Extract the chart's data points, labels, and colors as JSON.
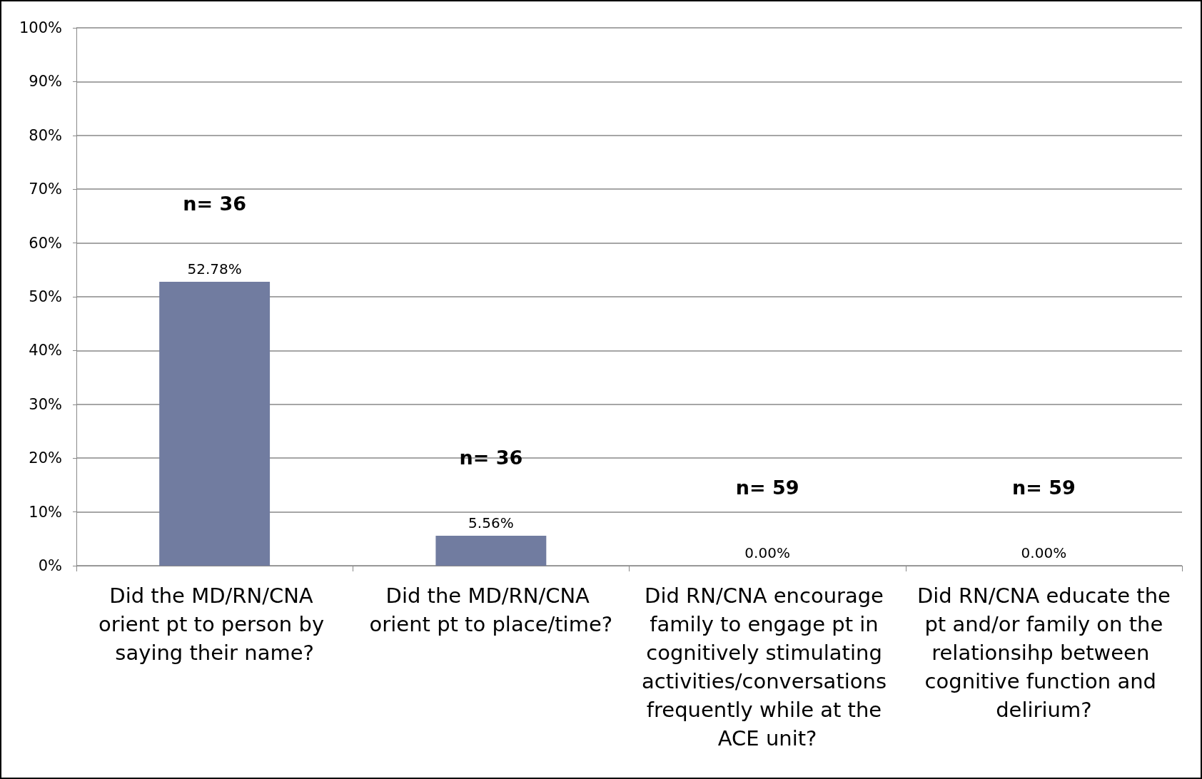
{
  "chart_data": {
    "type": "bar",
    "categories": [
      "Did the MD/RN/CNA orient pt to person by saying their name?",
      "Did the MD/RN/CNA orient pt to place/time?",
      "Did RN/CNA encourage family to engage pt in cognitively stimulating activities/conversations frequently while at the ACE unit?",
      "Did RN/CNA educate the pt and/or family on the relationsihp between cognitive function and delirium?"
    ],
    "values": [
      52.78,
      5.56,
      0,
      0
    ],
    "value_labels": [
      "52.78%",
      "5.56%",
      "0.00%",
      "0.00%"
    ],
    "color": "#717ca0",
    "ylim": [
      0,
      100
    ],
    "yticks": [
      {
        "value": 0,
        "label": "0%"
      },
      {
        "value": 10,
        "label": "10%"
      },
      {
        "value": 20,
        "label": "20%"
      },
      {
        "value": 30,
        "label": "30%"
      },
      {
        "value": 40,
        "label": "40%"
      },
      {
        "value": 50,
        "label": "50%"
      },
      {
        "value": 60,
        "label": "60%"
      },
      {
        "value": 70,
        "label": "70%"
      },
      {
        "value": 80,
        "label": "80%"
      },
      {
        "value": 90,
        "label": "90%"
      },
      {
        "value": 100,
        "label": "100%"
      }
    ],
    "grid": "y",
    "annotations": [
      "n= 36",
      "n= 36",
      "n= 59",
      "n= 59"
    ]
  }
}
